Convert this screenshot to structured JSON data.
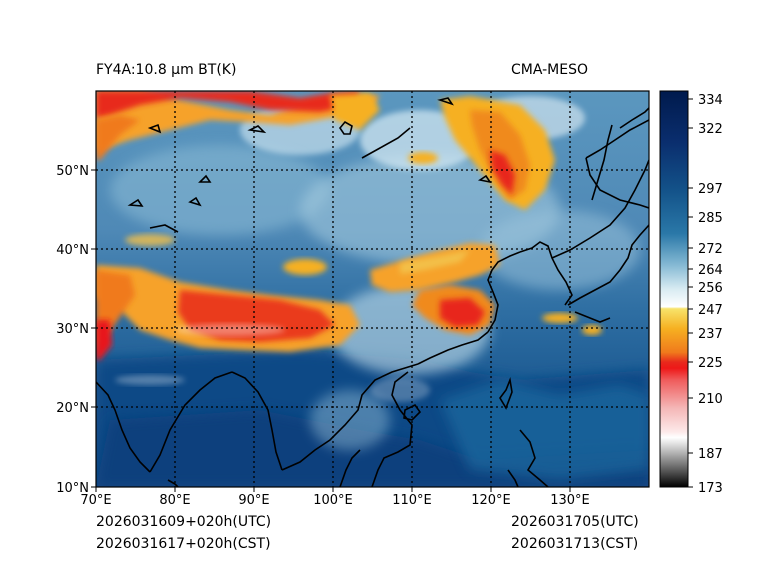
{
  "header": {
    "title": "FY4A:10.8 µm BT(K)",
    "model": "CMA-MESO"
  },
  "footer": {
    "init_utc": "2026031609+020h(UTC)",
    "init_cst": "2026031617+020h(CST)",
    "valid_utc": "2026031705(UTC)",
    "valid_cst": "2026031713(CST)"
  },
  "map": {
    "lon_range": [
      70,
      140
    ],
    "lat_range": [
      10,
      60
    ],
    "lon_ticks": [
      "70°E",
      "80°E",
      "90°E",
      "100°E",
      "110°E",
      "120°E",
      "130°E"
    ],
    "lat_ticks": [
      "10°N",
      "20°N",
      "30°N",
      "40°N",
      "50°N"
    ]
  },
  "colorbar": {
    "min": 173,
    "max": 337,
    "ticks": [
      "334",
      "322",
      "297",
      "285",
      "272",
      "264",
      "256",
      "247",
      "237",
      "225",
      "210",
      "187",
      "173"
    ],
    "colors": {
      "navy": "#001a4d",
      "blue": "#1c5f94",
      "light_blue": "#6aa9c9",
      "white": "#ffffff",
      "yellow": "#f7c524",
      "orange": "#f08a1d",
      "red": "#e8181a",
      "pink": "#f2a0a0",
      "gray": "#9a9a9a",
      "black": "#000000"
    }
  }
}
